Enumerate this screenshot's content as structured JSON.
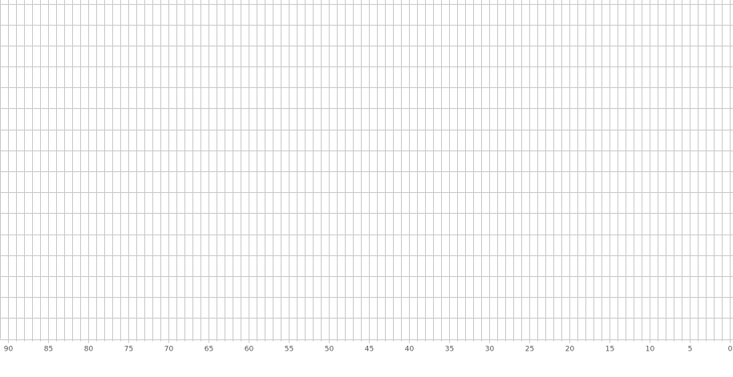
{
  "chart_data": {
    "type": "line",
    "title": "",
    "xlabel": "",
    "ylabel": "",
    "x_axis": {
      "range": [
        90,
        0
      ],
      "reversed": true,
      "major_tick_step": 5,
      "minor_tick_step": 1,
      "tick_labels": [
        "90",
        "85",
        "80",
        "75",
        "70",
        "65",
        "60",
        "55",
        "50",
        "45",
        "40",
        "35",
        "30",
        "25",
        "20",
        "15",
        "10",
        "5",
        "0"
      ]
    },
    "y_axis": {
      "visible_labels": false,
      "gridline_count": 16
    },
    "grid": true,
    "series": [],
    "colors": {
      "grid": "#c8c8c8",
      "tick_label": "#555555",
      "background": "#ffffff"
    }
  }
}
